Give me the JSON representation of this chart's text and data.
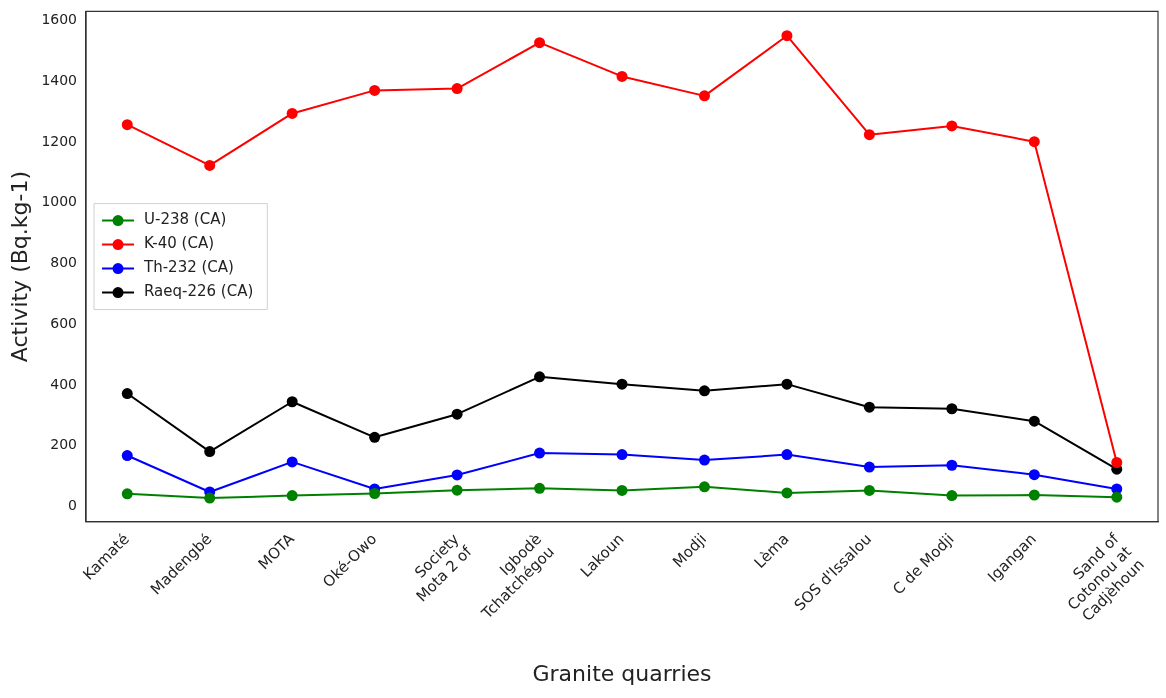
{
  "chart_data": {
    "type": "line",
    "xlabel": "Granite quarries",
    "ylabel": "Activity (Bq.kg-1)",
    "categories": [
      "Kamaté",
      "Madengbé",
      "MOTA",
      "Oké-Owo",
      "Society\nMota 2 of",
      "Igbodè\nTchatchégou",
      "Lakoun",
      "Modji",
      "Lèma",
      "SOS d'Issalou",
      "C de Modji",
      "Igangan",
      "Sand of\nCotonou at\nCadjèhoun"
    ],
    "series": [
      {
        "name": "U-238 (CA)",
        "color": "#008000",
        "values": [
          42,
          28,
          36,
          43,
          54,
          60,
          53,
          65,
          45,
          53,
          36,
          38,
          31
        ]
      },
      {
        "name": "K-40 (CA)",
        "color": "#ff0000",
        "values": [
          1257,
          1123,
          1294,
          1370,
          1376,
          1527,
          1416,
          1352,
          1550,
          1224,
          1253,
          1201,
          145
        ]
      },
      {
        "name": "Th-232 (CA)",
        "color": "#0000ff",
        "values": [
          168,
          48,
          147,
          58,
          104,
          176,
          171,
          153,
          171,
          130,
          136,
          105,
          58
        ]
      },
      {
        "name": "Raeq-226 (CA)",
        "color": "#000000",
        "values": [
          372,
          181,
          345,
          228,
          304,
          427,
          403,
          381,
          403,
          327,
          322,
          281,
          123
        ]
      }
    ],
    "ylim": [
      -50,
      1630
    ],
    "yticks": [
      0,
      200,
      400,
      600,
      800,
      1000,
      1200,
      1400,
      1600
    ],
    "grid": false,
    "legend": "center left",
    "marker": "circle",
    "line_style": "solid"
  }
}
